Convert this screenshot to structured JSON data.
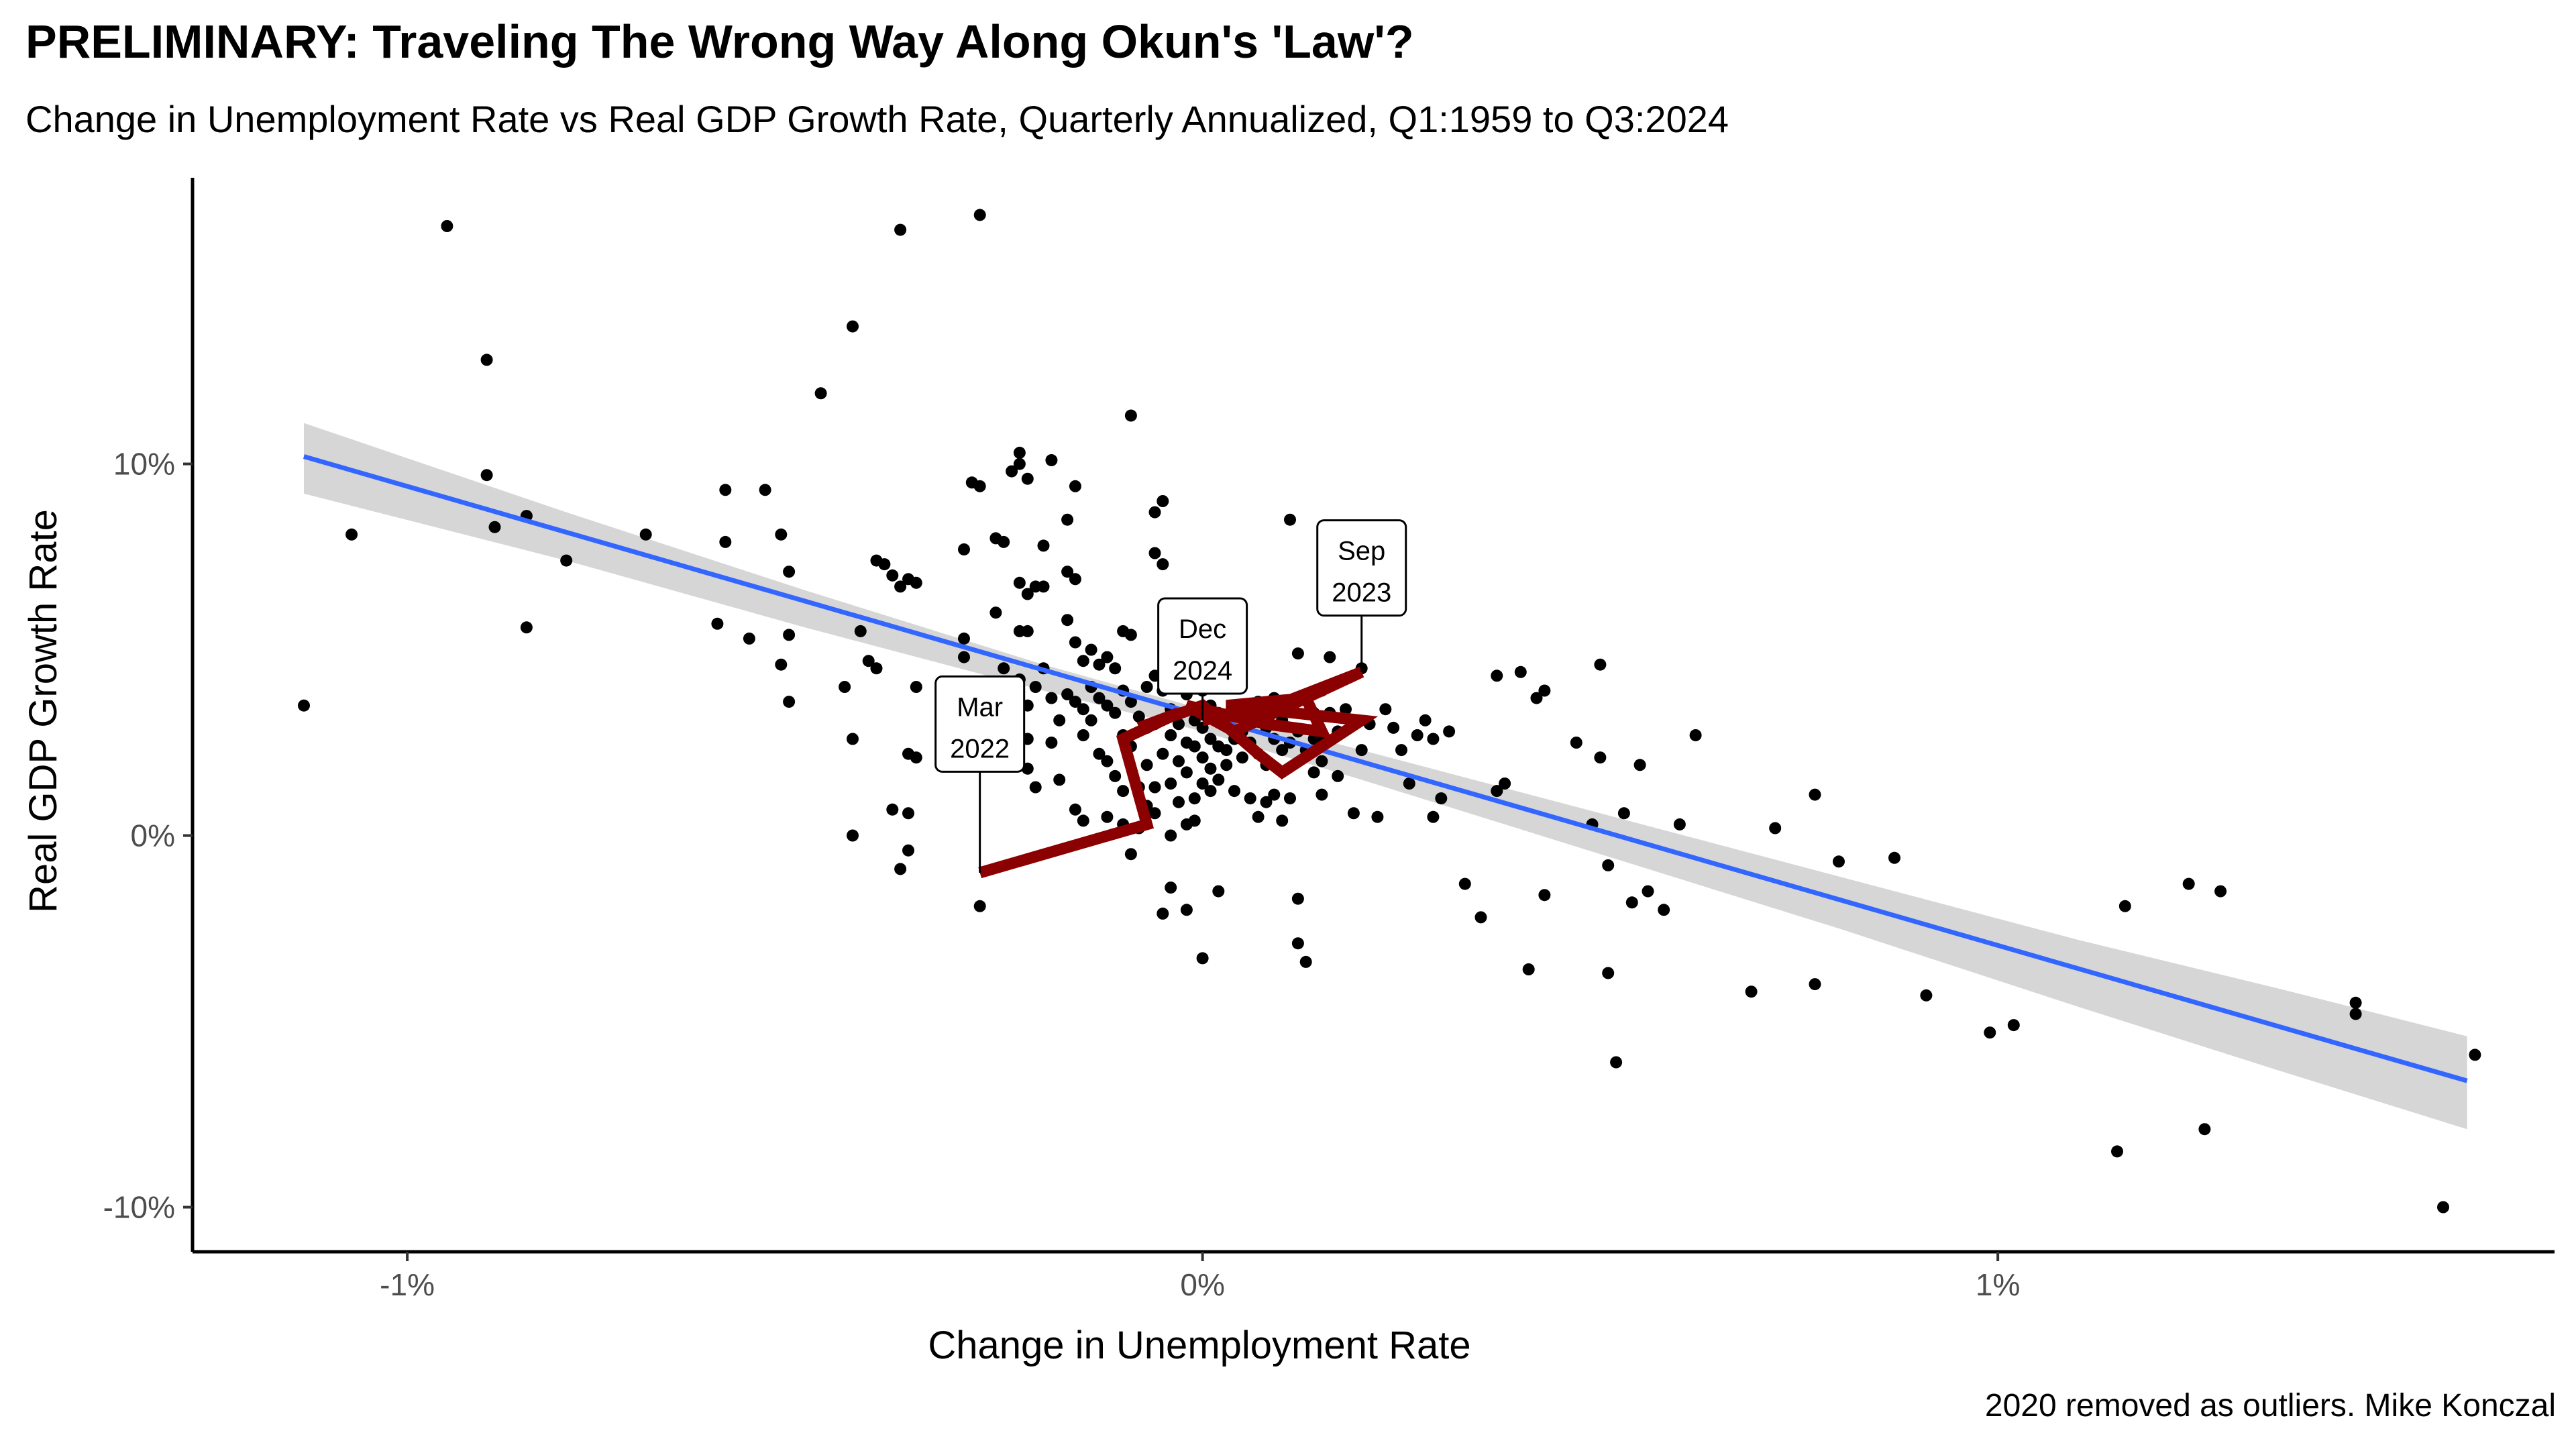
{
  "chart_data": {
    "type": "scatter",
    "title": "PRELIMINARY: Traveling The Wrong Way Along Okun's 'Law'?",
    "subtitle": "Change in Unemployment Rate vs Real GDP Growth Rate, Quarterly Annualized, Q1:1959 to Q3:2024",
    "caption": "2020 removed as outliers. Mike Konczal",
    "xlabel": "Change in Unemployment Rate",
    "ylabel": "Real GDP Growth Rate",
    "xlim": [
      -1.27,
      1.7
    ],
    "ylim": [
      -11.2,
      17.7
    ],
    "x_ticks": [
      {
        "value": -1,
        "label": "-1%"
      },
      {
        "value": 0,
        "label": "0%"
      },
      {
        "value": 1,
        "label": "1%"
      }
    ],
    "y_ticks": [
      {
        "value": -10,
        "label": "-10%"
      },
      {
        "value": 0,
        "label": "0%"
      },
      {
        "value": 10,
        "label": "10%"
      }
    ],
    "grid": false,
    "colors": {
      "points": "#000000",
      "fit_line": "#3366ff",
      "confidence_band": "#cccccc",
      "path": "#8b0000",
      "axis": "#000000"
    },
    "points": [
      [
        -1.13,
        3.5
      ],
      [
        -1.07,
        8.1
      ],
      [
        -0.95,
        16.4
      ],
      [
        -0.9,
        12.8
      ],
      [
        -0.9,
        9.7
      ],
      [
        -0.89,
        8.3
      ],
      [
        -0.85,
        8.6
      ],
      [
        -0.85,
        5.6
      ],
      [
        -0.8,
        7.4
      ],
      [
        -0.7,
        8.1
      ],
      [
        -0.61,
        5.7
      ],
      [
        -0.6,
        9.3
      ],
      [
        -0.6,
        7.9
      ],
      [
        -0.57,
        5.3
      ],
      [
        -0.55,
        9.3
      ],
      [
        -0.53,
        4.6
      ],
      [
        -0.53,
        8.1
      ],
      [
        -0.52,
        7.1
      ],
      [
        -0.52,
        5.4
      ],
      [
        -0.52,
        3.6
      ],
      [
        -0.48,
        11.9
      ],
      [
        -0.45,
        4.0
      ],
      [
        -0.44,
        13.7
      ],
      [
        -0.44,
        2.6
      ],
      [
        -0.44,
        0.0
      ],
      [
        -0.43,
        5.5
      ],
      [
        -0.42,
        4.7
      ],
      [
        -0.41,
        7.4
      ],
      [
        -0.41,
        4.5
      ],
      [
        -0.4,
        7.3
      ],
      [
        -0.39,
        7.0
      ],
      [
        -0.39,
        0.7
      ],
      [
        -0.38,
        16.3
      ],
      [
        -0.38,
        6.7
      ],
      [
        -0.38,
        -0.9
      ],
      [
        -0.37,
        6.9
      ],
      [
        -0.37,
        2.2
      ],
      [
        -0.37,
        0.6
      ],
      [
        -0.37,
        -0.4
      ],
      [
        -0.36,
        6.8
      ],
      [
        -0.36,
        4.0
      ],
      [
        -0.36,
        2.1
      ],
      [
        -0.3,
        7.7
      ],
      [
        -0.3,
        5.3
      ],
      [
        -0.3,
        4.8
      ],
      [
        -0.29,
        9.5
      ],
      [
        -0.29,
        3.8
      ],
      [
        -0.28,
        16.7
      ],
      [
        -0.28,
        9.4
      ],
      [
        -0.28,
        3.0
      ],
      [
        -0.28,
        -1.9
      ],
      [
        -0.27,
        3.4
      ],
      [
        -0.26,
        8.0
      ],
      [
        -0.26,
        6.0
      ],
      [
        -0.25,
        4.5
      ],
      [
        -0.25,
        7.9
      ],
      [
        -0.24,
        9.8
      ],
      [
        -0.23,
        10.3
      ],
      [
        -0.23,
        10.0
      ],
      [
        -0.23,
        6.8
      ],
      [
        -0.23,
        5.5
      ],
      [
        -0.23,
        4.2
      ],
      [
        -0.22,
        9.6
      ],
      [
        -0.22,
        6.5
      ],
      [
        -0.22,
        5.5
      ],
      [
        -0.22,
        3.5
      ],
      [
        -0.22,
        2.6
      ],
      [
        -0.22,
        1.8
      ],
      [
        -0.21,
        6.7
      ],
      [
        -0.21,
        4.0
      ],
      [
        -0.21,
        1.3
      ],
      [
        -0.2,
        7.8
      ],
      [
        -0.2,
        6.7
      ],
      [
        -0.2,
        4.5
      ],
      [
        -0.19,
        10.1
      ],
      [
        -0.19,
        3.7
      ],
      [
        -0.19,
        2.5
      ],
      [
        -0.18,
        3.1
      ],
      [
        -0.18,
        1.5
      ],
      [
        -0.17,
        8.5
      ],
      [
        -0.17,
        7.1
      ],
      [
        -0.17,
        5.8
      ],
      [
        -0.17,
        3.8
      ],
      [
        -0.16,
        9.4
      ],
      [
        -0.16,
        6.9
      ],
      [
        -0.16,
        5.2
      ],
      [
        -0.16,
        3.6
      ],
      [
        -0.16,
        0.7
      ],
      [
        -0.15,
        4.7
      ],
      [
        -0.15,
        3.4
      ],
      [
        -0.15,
        2.7
      ],
      [
        -0.15,
        0.4
      ],
      [
        -0.14,
        5.0
      ],
      [
        -0.14,
        4.0
      ],
      [
        -0.14,
        3.1
      ],
      [
        -0.13,
        4.6
      ],
      [
        -0.13,
        3.7
      ],
      [
        -0.13,
        2.2
      ],
      [
        -0.12,
        4.8
      ],
      [
        -0.12,
        3.5
      ],
      [
        -0.12,
        2.0
      ],
      [
        -0.12,
        0.5
      ],
      [
        -0.11,
        4.5
      ],
      [
        -0.11,
        3.3
      ],
      [
        -0.11,
        1.6
      ],
      [
        -0.1,
        5.5
      ],
      [
        -0.1,
        3.9
      ],
      [
        -0.1,
        2.7
      ],
      [
        -0.1,
        1.2
      ],
      [
        -0.1,
        0.3
      ],
      [
        -0.09,
        11.3
      ],
      [
        -0.09,
        5.4
      ],
      [
        -0.09,
        3.6
      ],
      [
        -0.09,
        2.4
      ],
      [
        -0.09,
        -0.5
      ],
      [
        -0.08,
        3.2
      ],
      [
        -0.08,
        1.3
      ],
      [
        -0.08,
        0.2
      ],
      [
        -0.07,
        4.0
      ],
      [
        -0.07,
        2.9
      ],
      [
        -0.07,
        1.9
      ],
      [
        -0.07,
        0.8
      ],
      [
        -0.06,
        8.7
      ],
      [
        -0.06,
        7.6
      ],
      [
        -0.06,
        4.3
      ],
      [
        -0.06,
        3.0
      ],
      [
        -0.06,
        1.3
      ],
      [
        -0.06,
        0.6
      ],
      [
        -0.05,
        9.0
      ],
      [
        -0.05,
        7.3
      ],
      [
        -0.05,
        3.9
      ],
      [
        -0.05,
        2.2
      ],
      [
        -0.05,
        -2.1
      ],
      [
        -0.04,
        3.4
      ],
      [
        -0.04,
        2.7
      ],
      [
        -0.04,
        1.4
      ],
      [
        -0.04,
        0.0
      ],
      [
        -0.04,
        -1.4
      ],
      [
        -0.03,
        4.1
      ],
      [
        -0.03,
        3.0
      ],
      [
        -0.03,
        2.0
      ],
      [
        -0.03,
        0.9
      ],
      [
        -0.02,
        3.8
      ],
      [
        -0.02,
        2.5
      ],
      [
        -0.02,
        1.7
      ],
      [
        -0.02,
        0.3
      ],
      [
        -0.02,
        -2.0
      ],
      [
        -0.01,
        4.1
      ],
      [
        -0.01,
        3.1
      ],
      [
        -0.01,
        2.4
      ],
      [
        -0.01,
        1.0
      ],
      [
        -0.01,
        0.4
      ],
      [
        0.0,
        3.9
      ],
      [
        0.0,
        2.9
      ],
      [
        0.0,
        2.1
      ],
      [
        0.0,
        1.4
      ],
      [
        0.0,
        -3.3
      ],
      [
        0.01,
        3.5
      ],
      [
        0.01,
        2.6
      ],
      [
        0.01,
        1.8
      ],
      [
        0.01,
        1.2
      ],
      [
        0.02,
        3.3
      ],
      [
        0.02,
        2.4
      ],
      [
        0.02,
        1.5
      ],
      [
        0.02,
        -1.5
      ],
      [
        0.03,
        3.0
      ],
      [
        0.03,
        2.3
      ],
      [
        0.03,
        1.9
      ],
      [
        0.04,
        3.4
      ],
      [
        0.04,
        2.6
      ],
      [
        0.04,
        1.2
      ],
      [
        0.05,
        2.8
      ],
      [
        0.05,
        2.1
      ],
      [
        0.06,
        3.1
      ],
      [
        0.06,
        2.5
      ],
      [
        0.06,
        1.0
      ],
      [
        0.07,
        3.6
      ],
      [
        0.07,
        2.2
      ],
      [
        0.07,
        0.5
      ],
      [
        0.08,
        3.3
      ],
      [
        0.08,
        2.9
      ],
      [
        0.08,
        1.9
      ],
      [
        0.08,
        0.9
      ],
      [
        0.09,
        3.7
      ],
      [
        0.09,
        2.6
      ],
      [
        0.09,
        1.1
      ],
      [
        0.1,
        3.1
      ],
      [
        0.1,
        2.3
      ],
      [
        0.1,
        0.4
      ],
      [
        0.11,
        8.5
      ],
      [
        0.11,
        3.5
      ],
      [
        0.11,
        2.5
      ],
      [
        0.11,
        1.0
      ],
      [
        0.12,
        4.9
      ],
      [
        0.12,
        2.8
      ],
      [
        0.12,
        -1.7
      ],
      [
        0.12,
        -2.9
      ],
      [
        0.13,
        3.8
      ],
      [
        0.13,
        2.3
      ],
      [
        0.13,
        -3.4
      ],
      [
        0.14,
        3.3
      ],
      [
        0.14,
        2.6
      ],
      [
        0.14,
        1.7
      ],
      [
        0.15,
        3.9
      ],
      [
        0.15,
        2.7
      ],
      [
        0.15,
        2.0
      ],
      [
        0.15,
        1.1
      ],
      [
        0.16,
        4.8
      ],
      [
        0.16,
        3.3
      ],
      [
        0.17,
        2.8
      ],
      [
        0.17,
        1.6
      ],
      [
        0.18,
        3.4
      ],
      [
        0.19,
        0.6
      ],
      [
        0.2,
        2.3
      ],
      [
        0.2,
        4.5
      ],
      [
        0.21,
        3.0
      ],
      [
        0.22,
        0.5
      ],
      [
        0.23,
        6.8
      ],
      [
        0.23,
        3.4
      ],
      [
        0.24,
        2.9
      ],
      [
        0.25,
        2.3
      ],
      [
        0.26,
        1.4
      ],
      [
        0.27,
        2.7
      ],
      [
        0.28,
        3.1
      ],
      [
        0.29,
        2.6
      ],
      [
        0.29,
        0.5
      ],
      [
        0.3,
        1.0
      ],
      [
        0.31,
        2.8
      ],
      [
        0.33,
        -1.3
      ],
      [
        0.35,
        -2.2
      ],
      [
        0.37,
        1.2
      ],
      [
        0.37,
        4.3
      ],
      [
        0.38,
        1.4
      ],
      [
        0.4,
        4.4
      ],
      [
        0.41,
        -3.6
      ],
      [
        0.42,
        3.7
      ],
      [
        0.43,
        3.9
      ],
      [
        0.43,
        -1.6
      ],
      [
        0.47,
        2.5
      ],
      [
        0.49,
        0.3
      ],
      [
        0.5,
        4.6
      ],
      [
        0.5,
        2.1
      ],
      [
        0.51,
        -0.8
      ],
      [
        0.51,
        -3.7
      ],
      [
        0.52,
        -6.1
      ],
      [
        0.53,
        0.6
      ],
      [
        0.54,
        -1.8
      ],
      [
        0.55,
        1.9
      ],
      [
        0.56,
        -1.5
      ],
      [
        0.58,
        -2.0
      ],
      [
        0.6,
        0.3
      ],
      [
        0.62,
        2.7
      ],
      [
        0.69,
        -4.2
      ],
      [
        0.72,
        0.2
      ],
      [
        0.77,
        1.1
      ],
      [
        0.77,
        -4.0
      ],
      [
        0.8,
        -0.7
      ],
      [
        0.87,
        -0.6
      ],
      [
        0.91,
        -4.3
      ],
      [
        0.99,
        -5.3
      ],
      [
        1.02,
        -5.1
      ],
      [
        1.15,
        -8.5
      ],
      [
        1.16,
        -1.9
      ],
      [
        1.24,
        -1.3
      ],
      [
        1.26,
        -7.9
      ],
      [
        1.28,
        -1.5
      ],
      [
        1.45,
        -4.8
      ],
      [
        1.45,
        -4.5
      ],
      [
        1.56,
        -10.0
      ],
      [
        1.6,
        -5.9
      ]
    ],
    "fit_line": {
      "x": [
        -1.13,
        1.59
      ],
      "y": [
        10.2,
        -6.6
      ]
    },
    "confidence_band": {
      "x": [
        -1.13,
        -0.8,
        -0.5,
        -0.2,
        0.0,
        0.2,
        0.5,
        0.8,
        1.1,
        1.35,
        1.59
      ],
      "upper": [
        11.1,
        8.7,
        6.6,
        4.6,
        3.4,
        2.3,
        0.6,
        -1.1,
        -2.8,
        -4.1,
        -5.4
      ],
      "lower": [
        9.2,
        7.4,
        5.6,
        3.9,
        2.8,
        1.5,
        -0.5,
        -2.5,
        -4.6,
        -6.3,
        -7.9
      ]
    },
    "highlight_path": {
      "name": "2022-2024",
      "x": [
        -0.28,
        -0.07,
        -0.1,
        -0.03,
        -0.08,
        0.0,
        0.07,
        0.1,
        0.2,
        0.03,
        0.13,
        0.15,
        0.08,
        -0.02,
        0.04,
        0.2,
        0.08,
        0.0
      ],
      "y": [
        -1.0,
        0.3,
        2.6,
        3.3,
        2.9,
        3.5,
        2.2,
        1.7,
        3.1,
        3.5,
        3.7,
        2.8,
        3.0,
        3.5,
        2.8,
        4.4,
        3.4,
        3.1
      ]
    },
    "annotations": [
      {
        "line1": "Mar",
        "line2": "2022",
        "x": -0.28,
        "y": -1.0,
        "label_y": 3.0
      },
      {
        "line1": "Dec",
        "line2": "2024",
        "x": 0.0,
        "y": 3.1,
        "label_y": 5.1
      },
      {
        "line1": "Sep",
        "line2": "2023",
        "x": 0.2,
        "y": 4.4,
        "label_y": 7.2
      }
    ]
  }
}
